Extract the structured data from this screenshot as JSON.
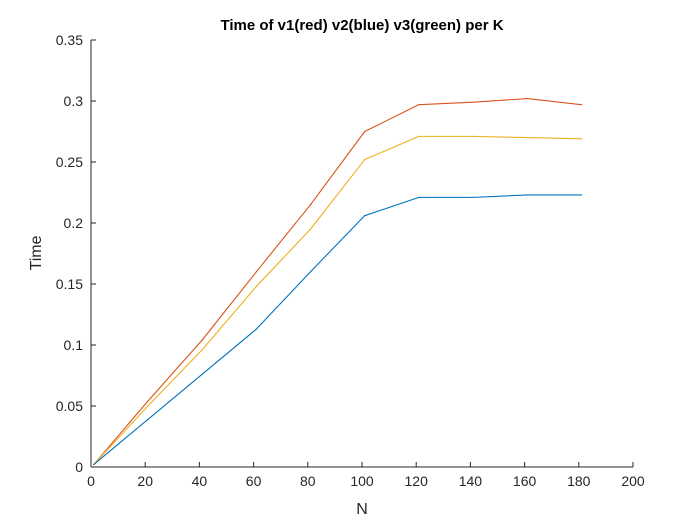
{
  "chart_data": {
    "type": "line",
    "title": "Time of v1(red) v2(blue) v3(green) per K",
    "xlabel": "N",
    "ylabel": "Time",
    "xlim": [
      0,
      200
    ],
    "ylim": [
      0,
      0.35
    ],
    "xticks": [
      "0",
      "20",
      "40",
      "60",
      "80",
      "100",
      "120",
      "140",
      "160",
      "180",
      "200"
    ],
    "yticks": [
      "0",
      "0.05",
      "0.1",
      "0.15",
      "0.2",
      "0.25",
      "0.3",
      "0.35"
    ],
    "grid": false,
    "legend": "none",
    "x": [
      1,
      21,
      41,
      61,
      81,
      101,
      121,
      141,
      161,
      181
    ],
    "series": [
      {
        "color": "#d95319",
        "values": [
          0.002,
          0.054,
          0.104,
          0.16,
          0.215,
          0.275,
          0.297,
          0.299,
          0.302,
          0.297
        ]
      },
      {
        "color": "#edb120",
        "values": [
          0.002,
          0.05,
          0.096,
          0.148,
          0.195,
          0.252,
          0.271,
          0.271,
          0.27,
          0.269
        ]
      },
      {
        "color": "#0072bd",
        "values": [
          0.002,
          0.039,
          0.076,
          0.113,
          0.16,
          0.206,
          0.221,
          0.221,
          0.223,
          0.223
        ]
      }
    ]
  }
}
